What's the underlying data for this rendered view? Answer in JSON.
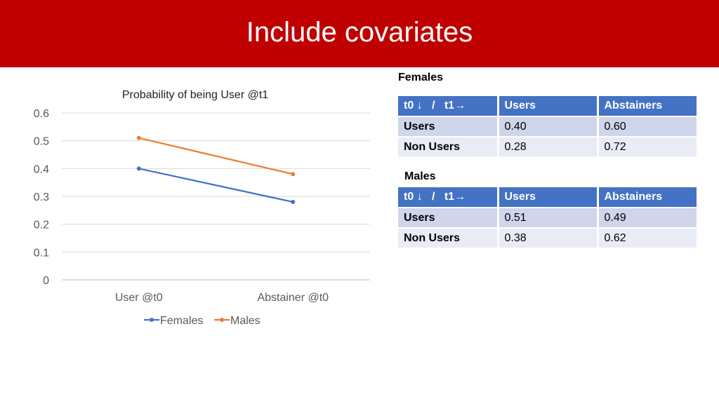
{
  "slide": {
    "title": "Include covariates"
  },
  "chart_data": {
    "type": "line",
    "title": "Probability of being User @t1",
    "categories": [
      "User @t0",
      "Abstainer @t0"
    ],
    "series": [
      {
        "name": "Females",
        "values": [
          0.4,
          0.28
        ],
        "color": "#4472c4"
      },
      {
        "name": "Males",
        "values": [
          0.51,
          0.38
        ],
        "color": "#ed7d31"
      }
    ],
    "ylim": [
      0,
      0.6
    ],
    "yticks": [
      0,
      0.1,
      0.2,
      0.3,
      0.4,
      0.5,
      0.6
    ],
    "ytick_labels": [
      "0",
      "0.1",
      "0.2",
      "0.3",
      "0.4",
      "0.5",
      "0.6"
    ],
    "grid": true,
    "legend_position": "bottom",
    "xlabel": "",
    "ylabel": ""
  },
  "tables": {
    "females": {
      "heading": "Females",
      "header": {
        "t0": "t0",
        "slash": "/",
        "t1": "t1",
        "col1": "Users",
        "col2": "Abstainers"
      },
      "rows": [
        {
          "label": "Users",
          "v1": "0.40",
          "v2": "0.60"
        },
        {
          "label": "Non Users",
          "v1": "0.28",
          "v2": "0.72"
        }
      ]
    },
    "males": {
      "heading": "Males",
      "header": {
        "t0": "t0",
        "slash": "/",
        "t1": "t1",
        "col1": "Users",
        "col2": "Abstainers"
      },
      "rows": [
        {
          "label": "Users",
          "v1": "0.51",
          "v2": "0.49"
        },
        {
          "label": "Non Users",
          "v1": "0.38",
          "v2": "0.62"
        }
      ]
    }
  }
}
